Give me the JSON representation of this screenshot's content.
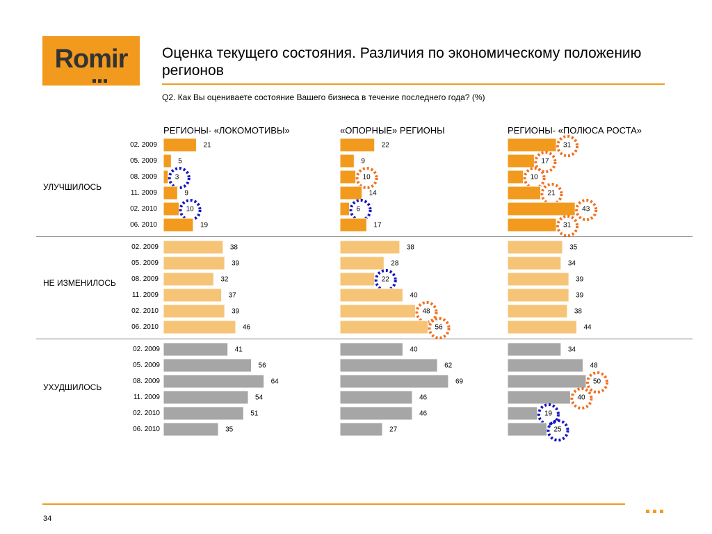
{
  "logo": {
    "text": "Romir"
  },
  "title": "Оценка текущего состояния. Различия по экономическому положению регионов",
  "question": "Q2. Как Вы оцениваете состояние Вашего бизнеса в течение последнего года? (%)",
  "groups": [
    "РЕГИОНЫ- «ЛОКОМОТИВЫ»",
    "«ОПОРНЫЕ» РЕГИОНЫ",
    "РЕГИОНЫ- «ПОЛЮСА РОСТА»"
  ],
  "sections": [
    "УЛУЧШИЛОСЬ",
    "НЕ ИЗМЕНИЛОСЬ",
    "УХУДШИЛОСЬ"
  ],
  "periods": [
    "02. 2009",
    "05. 2009",
    "08. 2009",
    "11. 2009",
    "02. 2010",
    "06. 2010"
  ],
  "page_number": "34",
  "colors": {
    "improved": "#f29a1e",
    "unchanged": "#f6c477",
    "worse": "#a6a6a6",
    "highlight_up": "#f07020",
    "highlight_down": "#1515c0"
  },
  "chart_data": {
    "type": "bar",
    "orientation": "horizontal",
    "categories": [
      "02. 2009",
      "05. 2009",
      "08. 2009",
      "11. 2009",
      "02. 2010",
      "06. 2010"
    ],
    "series": [
      {
        "group": "РЕГИОНЫ- «ЛОКОМОТИВЫ»",
        "section": "УЛУЧШИЛОСЬ",
        "values": [
          21,
          5,
          3,
          9,
          10,
          19
        ],
        "highlight_down": [
          2,
          4
        ],
        "highlight_up": []
      },
      {
        "group": "«ОПОРНЫЕ» РЕГИОНЫ",
        "section": "УЛУЧШИЛОСЬ",
        "values": [
          22,
          9,
          10,
          14,
          6,
          17
        ],
        "highlight_down": [
          4
        ],
        "highlight_up": [
          2
        ]
      },
      {
        "group": "РЕГИОНЫ- «ПОЛЮСА РОСТА»",
        "section": "УЛУЧШИЛОСЬ",
        "values": [
          31,
          17,
          10,
          21,
          43,
          31
        ],
        "highlight_down": [],
        "highlight_up": [
          0,
          1,
          2,
          3,
          4,
          5
        ]
      },
      {
        "group": "РЕГИОНЫ- «ЛОКОМОТИВЫ»",
        "section": "НЕ ИЗМЕНИЛОСЬ",
        "values": [
          38,
          39,
          32,
          37,
          39,
          46
        ],
        "highlight_down": [],
        "highlight_up": []
      },
      {
        "group": "«ОПОРНЫЕ» РЕГИОНЫ",
        "section": "НЕ ИЗМЕНИЛОСЬ",
        "values": [
          38,
          28,
          22,
          40,
          48,
          56
        ],
        "highlight_down": [
          2
        ],
        "highlight_up": [
          4,
          5
        ]
      },
      {
        "group": "РЕГИОНЫ- «ПОЛЮСА РОСТА»",
        "section": "НЕ ИЗМЕНИЛОСЬ",
        "values": [
          35,
          34,
          39,
          39,
          38,
          44
        ],
        "highlight_down": [],
        "highlight_up": []
      },
      {
        "group": "РЕГИОНЫ- «ЛОКОМОТИВЫ»",
        "section": "УХУДШИЛОСЬ",
        "values": [
          41,
          56,
          64,
          54,
          51,
          35
        ],
        "highlight_down": [],
        "highlight_up": []
      },
      {
        "group": "«ОПОРНЫЕ» РЕГИОНЫ",
        "section": "УХУДШИЛОСЬ",
        "values": [
          40,
          62,
          69,
          46,
          46,
          27
        ],
        "highlight_down": [],
        "highlight_up": []
      },
      {
        "group": "РЕГИОНЫ- «ПОЛЮСА РОСТА»",
        "section": "УХУДШИЛОСЬ",
        "values": [
          34,
          48,
          50,
          40,
          19,
          25
        ],
        "highlight_down": [
          4,
          5
        ],
        "highlight_up": [
          2,
          3
        ]
      }
    ]
  }
}
